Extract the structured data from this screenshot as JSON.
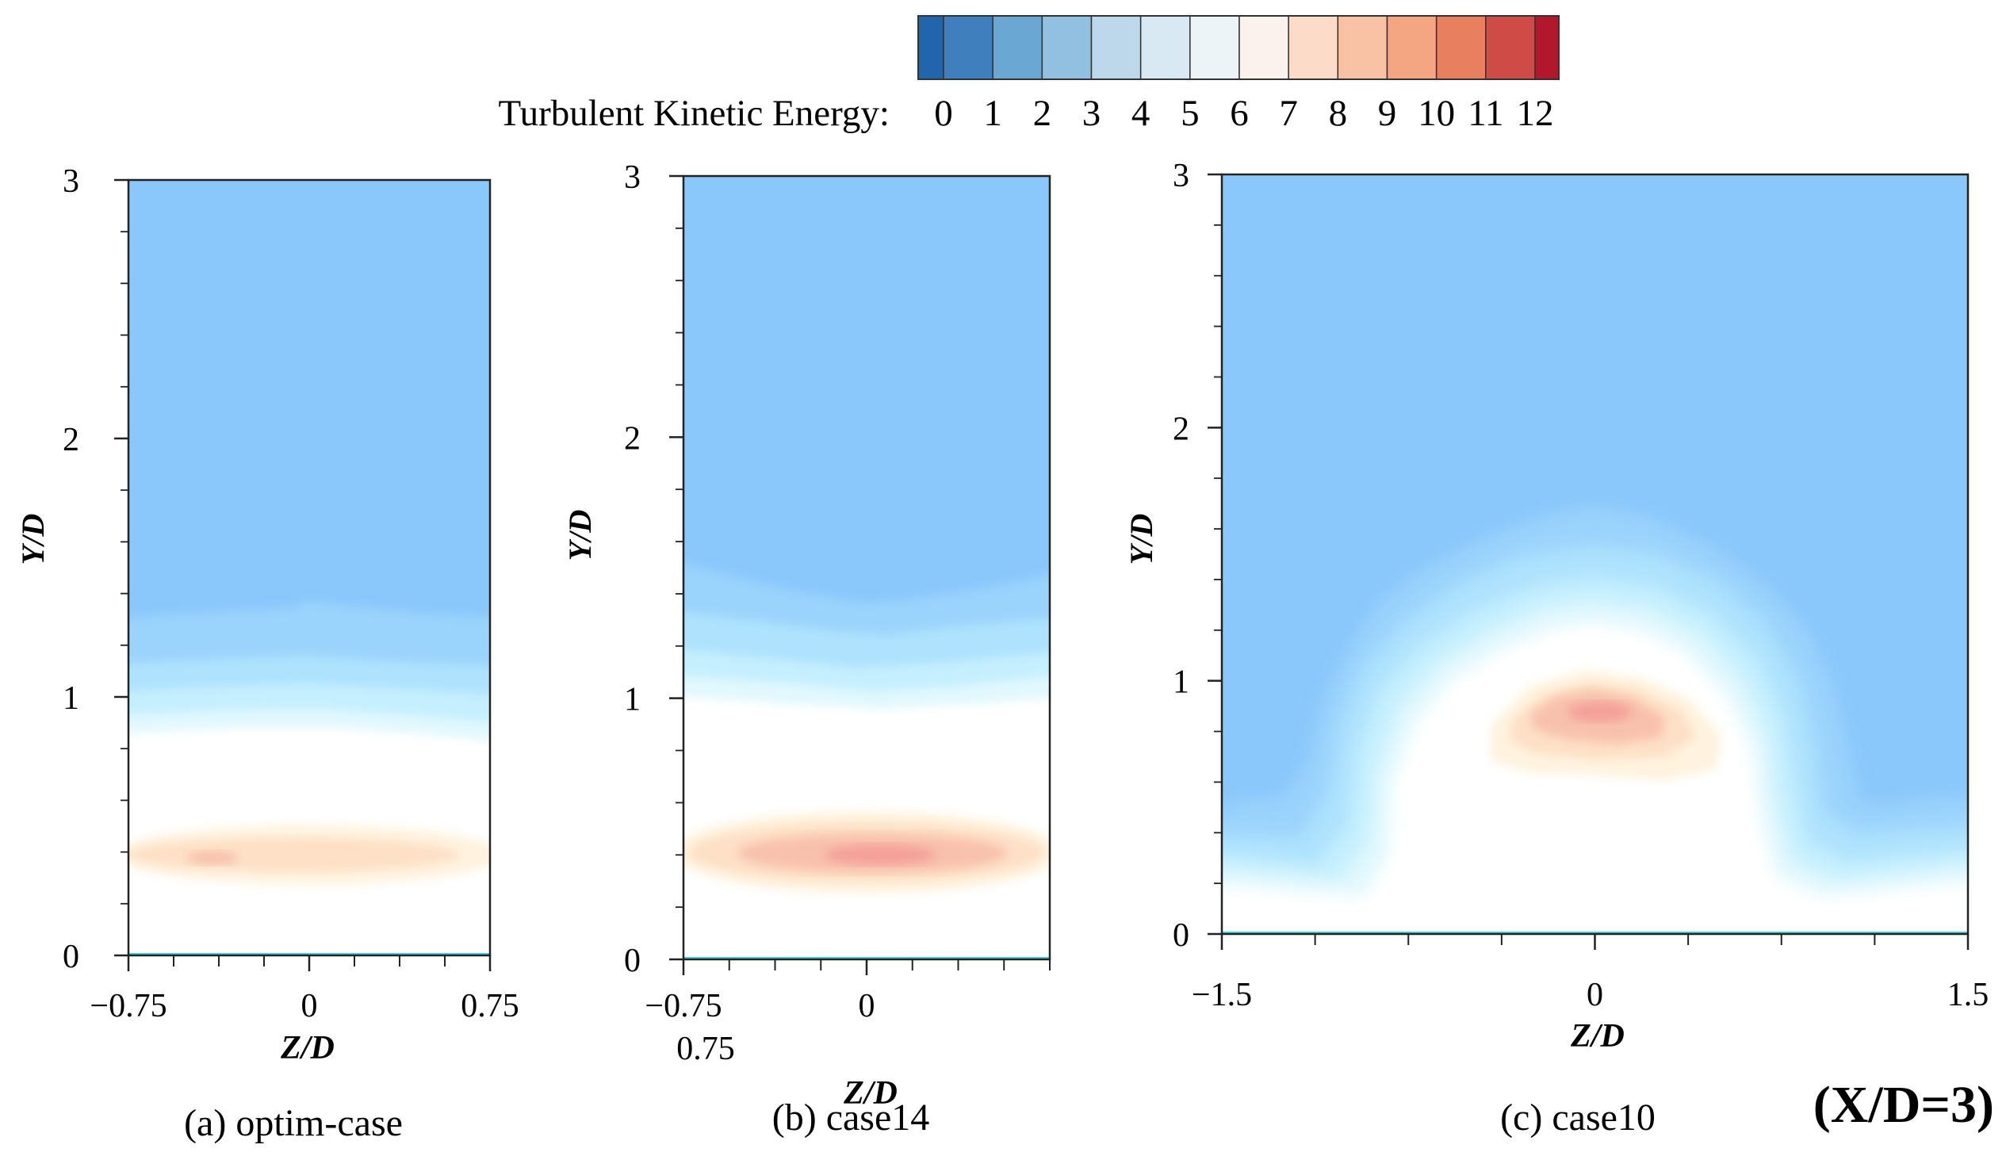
{
  "figure_tag": "(X/D=3)",
  "colorbar": {
    "label": "Turbulent Kinetic Energy:",
    "levels": [
      0,
      1,
      2,
      3,
      4,
      5,
      6,
      7,
      8,
      9,
      10,
      11,
      12
    ],
    "colors": [
      "#2166ac",
      "#3f7fbd",
      "#6aa7d3",
      "#92c0e0",
      "#bcd8ea",
      "#d9e9f3",
      "#edf4f8",
      "#fcf2ed",
      "#fcdcc9",
      "#f9c2a4",
      "#f4a582",
      "#e8805f",
      "#cf4b45",
      "#b2182b"
    ]
  },
  "field_colors": {
    "far_field": "#8ac7fb",
    "band_1": "#9ad3fc",
    "band_2": "#aee2fd",
    "band_3": "#c5effe",
    "band_4": "#e1f8fe",
    "core": "#ffffff",
    "warm_1": "#fff3df",
    "warm_2": "#fde0c6",
    "warm_3": "#f8c1ad",
    "warm_4": "#f4a09a",
    "wall_line": "#3cd6e6"
  },
  "chart_data": [
    {
      "type": "heatmap",
      "id": "a",
      "title": "(a) optim-case",
      "xlabel": "Z/D",
      "ylabel": "Y/D",
      "xlim": [
        -0.75,
        0.75
      ],
      "ylim": [
        0,
        3
      ],
      "xticks": [
        "−0.75",
        "0",
        "0.75"
      ],
      "xtick_values": [
        -0.75,
        0,
        0.75
      ],
      "yticks": [
        "0",
        "1",
        "2",
        "3"
      ],
      "ytick_values": [
        0,
        1,
        2,
        3
      ],
      "features": "horizontal layered field; peak TKE about 7 near Y/D = 0.38 at Z/D = -0.45; blue bands from Y/D 0.9 to 1.35"
    },
    {
      "type": "heatmap",
      "id": "b",
      "title": "(b) case14",
      "xlabel": "Z/D",
      "ylabel": "Y/D",
      "xlim": [
        -0.75,
        0.75
      ],
      "ylim": [
        0,
        3
      ],
      "xticks": [
        "−0.75",
        "0"
      ],
      "xtick_values": [
        -0.75,
        0
      ],
      "extra_label": "0.75",
      "yticks": [
        "0",
        "1",
        "2",
        "3"
      ],
      "ytick_values": [
        0,
        1,
        2,
        3
      ],
      "features": "horizontal warm band centered at Y/D = 0.42, peak TKE about 9 at Z/D = 0.05; blue bands from Y/D 0.95 to 1.55"
    },
    {
      "type": "heatmap",
      "id": "c",
      "title": "(c) case10",
      "xlabel": "Z/D",
      "ylabel": "Y/D",
      "xlim": [
        -1.5,
        1.5
      ],
      "ylim": [
        0,
        3
      ],
      "xticks": [
        "−1.5",
        "0",
        "1.5"
      ],
      "xtick_values": [
        -1.5,
        0,
        1.5
      ],
      "yticks": [
        "0",
        "1",
        "2",
        "3"
      ],
      "ytick_values": [
        0,
        1,
        2,
        3
      ],
      "features": "dome shaped wake up to Y/D 1.7 spanning Z/D -1.1 to 1.1; peak TKE about 9 at Z/D = 0, Y/D = 0.9"
    }
  ]
}
